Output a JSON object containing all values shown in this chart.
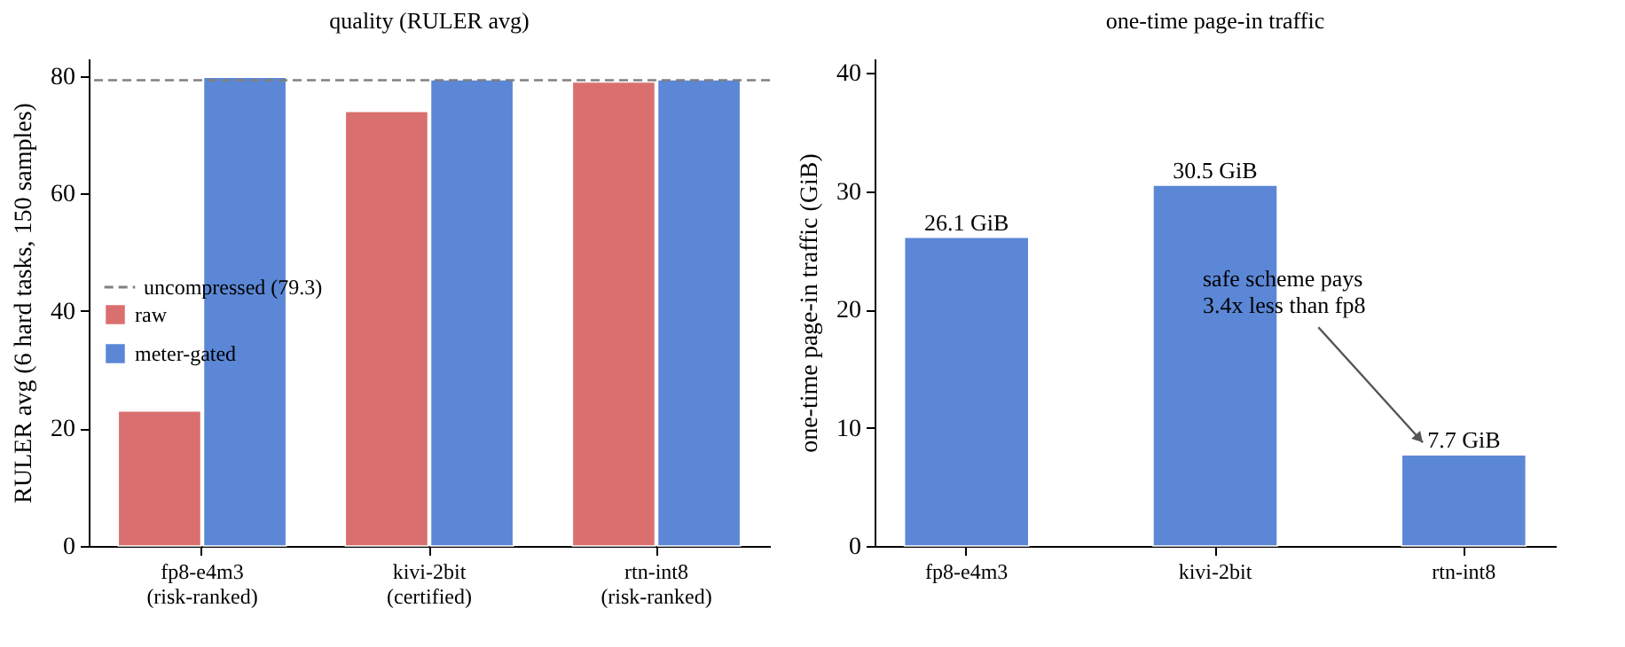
{
  "chart_data": [
    {
      "type": "bar",
      "title": "quality (RULER avg)",
      "ylabel": "RULER avg (6 hard tasks, 150 samples)",
      "categories": [
        "fp8-e4m3\n(risk-ranked)",
        "kivi-2bit\n(certified)",
        "rtn-int8\n(risk-ranked)"
      ],
      "series": [
        {
          "name": "raw",
          "color": "#d9706f",
          "values": [
            23,
            74,
            79
          ]
        },
        {
          "name": "meter-gated",
          "color": "#5b87d6",
          "values": [
            79.8,
            79.4,
            79.4
          ]
        }
      ],
      "ylim": [
        0,
        83
      ],
      "yticks": [
        0,
        20,
        40,
        60,
        80
      ],
      "ref_lines": [
        {
          "axis": "y",
          "value": 79.3,
          "label": "uncompressed (79.3)",
          "color": "#808080",
          "line_style": "dashed"
        }
      ],
      "legend": "left"
    },
    {
      "type": "bar",
      "title": "one-time page-in traffic",
      "ylabel": "one-time page-in traffic (GiB)",
      "categories": [
        "fp8-e4m3",
        "kivi-2bit",
        "rtn-int8"
      ],
      "values": [
        26.1,
        30.5,
        7.7
      ],
      "color": "#5b87d6",
      "value_labels": [
        "26.1 GiB",
        "30.5 GiB",
        "7.7 GiB"
      ],
      "ylim": [
        0,
        41.2
      ],
      "yticks": [
        0,
        10,
        20,
        30,
        40
      ],
      "annotations": [
        "safe scheme pays\n3.4x less than fp8"
      ]
    }
  ]
}
